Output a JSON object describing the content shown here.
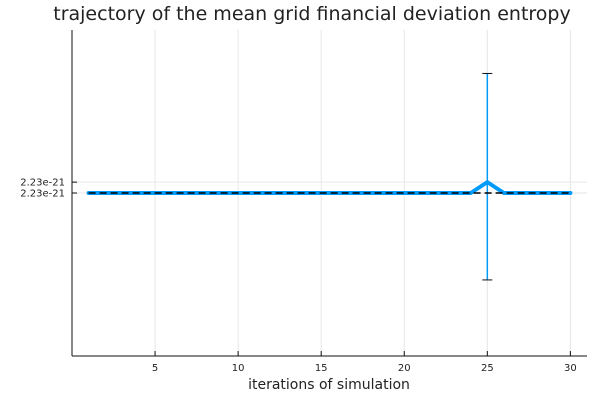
{
  "chart_data": {
    "type": "line",
    "title": "trajectory of the mean grid financial deviation entropy",
    "xlabel": "iterations of simulation",
    "ylabel": "",
    "xlim": [
      0,
      31
    ],
    "x_ticks": [
      5,
      10,
      15,
      20,
      25,
      30
    ],
    "y_ticks": [
      {
        "value": 2.23e-21,
        "label": "2.23e-21",
        "offset": 1
      },
      {
        "value": 2.23e-21,
        "label": "2.23e-21",
        "offset": 0
      }
    ],
    "y_offset_range": [
      -15,
      15
    ],
    "grid": true,
    "legend": "none",
    "series": [
      {
        "color": "#009af9",
        "x": [
          1,
          2,
          3,
          4,
          5,
          6,
          7,
          8,
          9,
          10,
          11,
          12,
          13,
          14,
          15,
          16,
          17,
          18,
          19,
          20,
          21,
          22,
          23,
          24,
          25,
          26,
          27,
          28,
          29,
          30
        ],
        "offset": [
          0,
          0,
          0,
          0,
          0,
          0,
          0,
          0,
          0,
          0,
          0,
          0,
          0,
          0,
          0,
          0,
          0,
          0,
          0,
          0,
          0,
          0,
          0,
          0,
          1,
          0,
          0,
          0,
          0,
          0
        ],
        "error_lower": [
          0,
          0,
          0,
          0,
          0,
          0,
          0,
          0,
          0,
          0,
          0,
          0,
          0,
          0,
          0,
          0,
          0,
          0,
          0,
          0,
          0,
          0,
          0,
          0,
          9,
          0,
          0,
          0,
          0,
          0
        ],
        "error_upper": [
          0,
          0,
          0,
          0,
          0,
          0,
          0,
          0,
          0,
          0,
          0,
          0,
          0,
          0,
          0,
          0,
          0,
          0,
          0,
          0,
          0,
          0,
          0,
          0,
          10,
          0,
          0,
          0,
          0,
          0
        ]
      }
    ],
    "reference_line": {
      "color": "#000000",
      "offset": 0,
      "style": "dashed"
    }
  }
}
